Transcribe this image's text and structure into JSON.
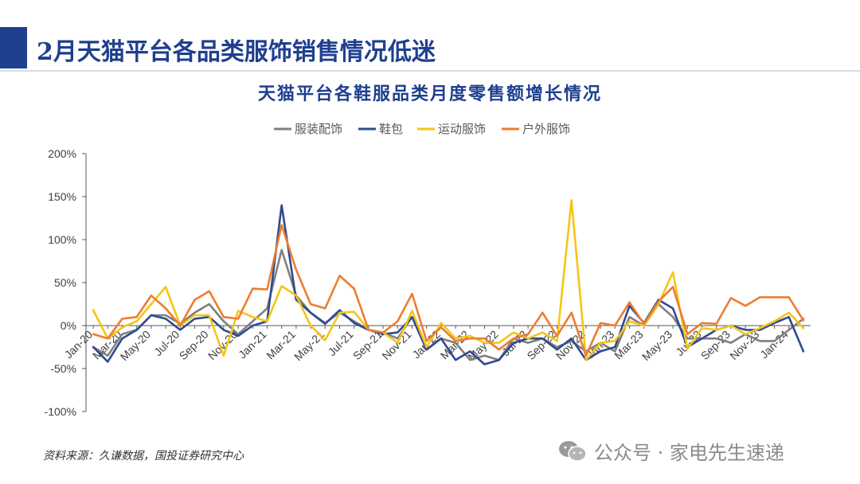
{
  "page": {
    "title": "2月天猫平台各品类服饰销售情况低迷",
    "source": "资料来源：久谦数据，国投证券研究中心",
    "watermark": "公众号 · 家电先生速递"
  },
  "colors": {
    "brand": "#1f3f8f",
    "series": [
      "#7f7f7f",
      "#2f4b8f",
      "#f5c518",
      "#ed7d31"
    ]
  },
  "chart_data": {
    "type": "line",
    "title": "天猫平台各鞋服品类月度零售额增长情况",
    "legend_position": "top",
    "grid": false,
    "ylim": [
      -100,
      200
    ],
    "y_ticks": [
      -100,
      -50,
      0,
      50,
      100,
      150,
      200
    ],
    "y_tick_labels": [
      "-100%",
      "-50%",
      "0%",
      "50%",
      "100%",
      "150%",
      "200%"
    ],
    "categories": [
      "Jan-20",
      "Feb-20",
      "Mar-20",
      "Apr-20",
      "May-20",
      "Jun-20",
      "Jul-20",
      "Aug-20",
      "Sep-20",
      "Oct-20",
      "Nov-20",
      "Dec-20",
      "Jan-21",
      "Feb-21",
      "Mar-21",
      "Apr-21",
      "May-21",
      "Jun-21",
      "Jul-21",
      "Aug-21",
      "Sep-21",
      "Oct-21",
      "Nov-21",
      "Dec-21",
      "Jan-22",
      "Feb-22",
      "Mar-22",
      "Apr-22",
      "May-22",
      "Jun-22",
      "Jul-22",
      "Aug-22",
      "Sep-22",
      "Oct-22",
      "Nov-22",
      "Dec-22",
      "Jan-23",
      "Feb-23",
      "Mar-23",
      "Apr-23",
      "May-23",
      "Jun-23",
      "Jul-23",
      "Aug-23",
      "Sep-23",
      "Oct-23",
      "Nov-23",
      "Dec-23",
      "Jan-24",
      "Feb-24"
    ],
    "x_tick_labels": [
      "Jan-20",
      "Mar-20",
      "May-20",
      "Jul-20",
      "Sep-20",
      "Nov-20",
      "Jan-21",
      "Mar-21",
      "May-21",
      "Jul-21",
      "Sep-21",
      "Nov-21",
      "Jan-22",
      "Mar-22",
      "May-22",
      "Jul-22",
      "Sep-22",
      "Nov-22",
      "Jan-23",
      "Mar-23",
      "May-23",
      "Jul-23",
      "Sep-23",
      "Nov-23",
      "Jan-24"
    ],
    "series": [
      {
        "name": "服装配饰",
        "values": [
          -25,
          -35,
          -10,
          -5,
          12,
          12,
          2,
          15,
          25,
          5,
          -10,
          5,
          20,
          88,
          35,
          15,
          3,
          15,
          5,
          -5,
          -8,
          -15,
          10,
          -28,
          -15,
          -20,
          -40,
          -35,
          -40,
          -15,
          -20,
          -15,
          -25,
          -18,
          -30,
          -20,
          -30,
          10,
          0,
          25,
          10,
          -15,
          -15,
          -15,
          -20,
          -10,
          -18,
          -18,
          -5,
          8
        ]
      },
      {
        "name": "鞋包",
        "values": [
          -25,
          -42,
          -15,
          -5,
          12,
          8,
          -5,
          8,
          10,
          -5,
          -12,
          0,
          5,
          140,
          30,
          15,
          2,
          18,
          3,
          -5,
          -10,
          -8,
          10,
          -28,
          -15,
          -40,
          -30,
          -45,
          -40,
          -20,
          -15,
          -15,
          -28,
          -15,
          -40,
          -30,
          -25,
          23,
          3,
          30,
          20,
          -25,
          -15,
          -5,
          0,
          -5,
          -5,
          3,
          10,
          -30
        ]
      },
      {
        "name": "运动服饰",
        "values": [
          18,
          -15,
          -2,
          5,
          25,
          45,
          0,
          12,
          12,
          -35,
          17,
          10,
          5,
          46,
          35,
          0,
          -17,
          15,
          16,
          -5,
          -8,
          -20,
          17,
          -25,
          3,
          -15,
          -12,
          -20,
          -20,
          -8,
          -15,
          -8,
          -18,
          146,
          -40,
          -20,
          -18,
          5,
          0,
          25,
          62,
          -27,
          -3,
          -5,
          0,
          -10,
          -3,
          5,
          15,
          -3
        ]
      },
      {
        "name": "户外服饰",
        "values": [
          -10,
          -15,
          8,
          10,
          35,
          20,
          0,
          30,
          40,
          10,
          8,
          43,
          42,
          117,
          65,
          25,
          20,
          58,
          43,
          -5,
          -8,
          5,
          37,
          -18,
          -2,
          -18,
          -15,
          -15,
          -28,
          -15,
          -10,
          15,
          -12,
          15,
          -35,
          3,
          0,
          27,
          2,
          28,
          45,
          -10,
          3,
          2,
          32,
          23,
          33,
          33,
          33,
          6
        ]
      }
    ]
  }
}
